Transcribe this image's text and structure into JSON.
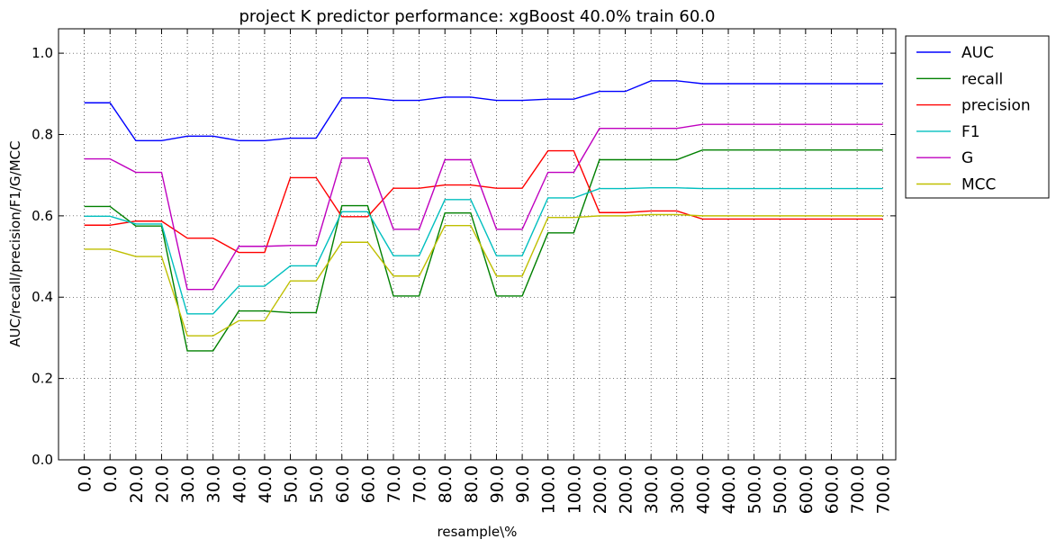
{
  "chart_data": {
    "type": "line",
    "title": "project K predictor performance: xgBoost 40.0% train 60.0",
    "xlabel": "resample\\%",
    "ylabel": "AUC/recall/precision/F1/G/MCC",
    "categories": [
      "0.0",
      "0.0",
      "20.0",
      "20.0",
      "30.0",
      "30.0",
      "40.0",
      "40.0",
      "50.0",
      "50.0",
      "60.0",
      "60.0",
      "70.0",
      "70.0",
      "80.0",
      "80.0",
      "90.0",
      "90.0",
      "100.0",
      "100.0",
      "200.0",
      "200.0",
      "300.0",
      "300.0",
      "400.0",
      "400.0",
      "500.0",
      "500.0",
      "600.0",
      "600.0",
      "700.0",
      "700.0"
    ],
    "ylim": [
      0,
      1.06
    ],
    "yticks": [
      "0.0",
      "0.2",
      "0.4",
      "0.6",
      "0.8",
      "1.0"
    ],
    "grid": true,
    "legend_position": "outside-right",
    "series": [
      {
        "name": "AUC",
        "color": "#0000ff",
        "values": [
          0.878,
          0.878,
          0.785,
          0.785,
          0.796,
          0.796,
          0.785,
          0.785,
          0.791,
          0.791,
          0.89,
          0.89,
          0.884,
          0.884,
          0.892,
          0.892,
          0.884,
          0.884,
          0.887,
          0.887,
          0.906,
          0.906,
          0.932,
          0.932,
          0.925,
          0.925,
          0.925,
          0.925,
          0.925,
          0.925,
          0.925,
          0.925
        ]
      },
      {
        "name": "recall",
        "color": "#008000",
        "values": [
          0.623,
          0.623,
          0.575,
          0.575,
          0.268,
          0.268,
          0.366,
          0.366,
          0.362,
          0.362,
          0.625,
          0.625,
          0.403,
          0.403,
          0.607,
          0.607,
          0.403,
          0.403,
          0.558,
          0.558,
          0.738,
          0.738,
          0.738,
          0.738,
          0.762,
          0.762,
          0.762,
          0.762,
          0.762,
          0.762,
          0.762,
          0.762
        ]
      },
      {
        "name": "precision",
        "color": "#ff0000",
        "values": [
          0.577,
          0.577,
          0.587,
          0.587,
          0.545,
          0.545,
          0.51,
          0.51,
          0.694,
          0.694,
          0.598,
          0.598,
          0.668,
          0.668,
          0.676,
          0.676,
          0.668,
          0.668,
          0.76,
          0.76,
          0.608,
          0.608,
          0.612,
          0.612,
          0.592,
          0.592,
          0.592,
          0.592,
          0.592,
          0.592,
          0.592,
          0.592
        ]
      },
      {
        "name": "F1",
        "color": "#00bfbf",
        "values": [
          0.599,
          0.599,
          0.58,
          0.58,
          0.359,
          0.359,
          0.427,
          0.427,
          0.477,
          0.477,
          0.61,
          0.61,
          0.502,
          0.502,
          0.64,
          0.64,
          0.502,
          0.502,
          0.644,
          0.644,
          0.667,
          0.667,
          0.669,
          0.669,
          0.667,
          0.667,
          0.667,
          0.667,
          0.667,
          0.667,
          0.667,
          0.667
        ]
      },
      {
        "name": "G",
        "color": "#bf00bf",
        "values": [
          0.74,
          0.74,
          0.707,
          0.707,
          0.419,
          0.419,
          0.525,
          0.525,
          0.527,
          0.527,
          0.742,
          0.742,
          0.567,
          0.567,
          0.738,
          0.738,
          0.567,
          0.567,
          0.707,
          0.707,
          0.815,
          0.815,
          0.815,
          0.815,
          0.825,
          0.825,
          0.825,
          0.825,
          0.825,
          0.825,
          0.825,
          0.825
        ]
      },
      {
        "name": "MCC",
        "color": "#bfbf00",
        "values": [
          0.518,
          0.518,
          0.5,
          0.5,
          0.305,
          0.305,
          0.342,
          0.342,
          0.44,
          0.44,
          0.535,
          0.535,
          0.452,
          0.452,
          0.576,
          0.576,
          0.452,
          0.452,
          0.596,
          0.596,
          0.6,
          0.6,
          0.603,
          0.603,
          0.6,
          0.6,
          0.6,
          0.6,
          0.6,
          0.6,
          0.6,
          0.6
        ]
      }
    ]
  }
}
